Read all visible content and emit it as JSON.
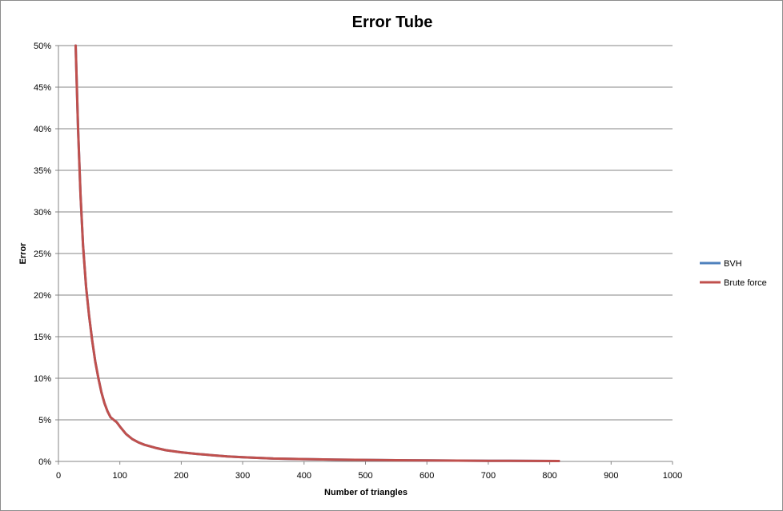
{
  "chart_data": {
    "type": "line",
    "title": "Error Tube",
    "xlabel": "Number of triangles",
    "ylabel": "Error",
    "xlim": [
      0,
      1000
    ],
    "ylim": [
      0,
      50
    ],
    "x_ticks": [
      "0",
      "100",
      "200",
      "300",
      "400",
      "500",
      "600",
      "700",
      "800",
      "900",
      "1000"
    ],
    "y_ticks": [
      "0%",
      "5%",
      "10%",
      "15%",
      "20%",
      "25%",
      "30%",
      "35%",
      "40%",
      "45%",
      "50%"
    ],
    "grid": "horizontal",
    "legend_position": "right",
    "series": [
      {
        "name": "BVH",
        "color": "#4f81bd",
        "points": [
          [
            28,
            50
          ],
          [
            32,
            40
          ],
          [
            36,
            32
          ],
          [
            40,
            26
          ],
          [
            45,
            21
          ],
          [
            50,
            17.5
          ],
          [
            55,
            14.5
          ],
          [
            60,
            12
          ],
          [
            65,
            10
          ],
          [
            70,
            8.3
          ],
          [
            75,
            7
          ],
          [
            80,
            6
          ],
          [
            85,
            5.3
          ],
          [
            90,
            5
          ],
          [
            95,
            4.7
          ],
          [
            100,
            4.2
          ],
          [
            110,
            3.3
          ],
          [
            120,
            2.7
          ],
          [
            130,
            2.3
          ],
          [
            140,
            2
          ],
          [
            150,
            1.8
          ],
          [
            160,
            1.6
          ],
          [
            175,
            1.35
          ],
          [
            200,
            1.1
          ],
          [
            225,
            0.9
          ],
          [
            250,
            0.75
          ],
          [
            275,
            0.6
          ],
          [
            300,
            0.5
          ],
          [
            350,
            0.35
          ],
          [
            400,
            0.28
          ],
          [
            450,
            0.22
          ],
          [
            500,
            0.18
          ],
          [
            550,
            0.14
          ],
          [
            600,
            0.12
          ],
          [
            700,
            0.08
          ],
          [
            815,
            0.05
          ]
        ]
      },
      {
        "name": "Brute force",
        "color": "#c0504d",
        "points": [
          [
            28,
            50
          ],
          [
            32,
            40
          ],
          [
            36,
            32
          ],
          [
            40,
            26
          ],
          [
            45,
            21
          ],
          [
            50,
            17.5
          ],
          [
            55,
            14.5
          ],
          [
            60,
            12
          ],
          [
            65,
            10
          ],
          [
            70,
            8.3
          ],
          [
            75,
            7
          ],
          [
            80,
            6
          ],
          [
            85,
            5.3
          ],
          [
            90,
            5
          ],
          [
            95,
            4.7
          ],
          [
            100,
            4.2
          ],
          [
            110,
            3.3
          ],
          [
            120,
            2.7
          ],
          [
            130,
            2.3
          ],
          [
            140,
            2
          ],
          [
            150,
            1.8
          ],
          [
            160,
            1.6
          ],
          [
            175,
            1.35
          ],
          [
            200,
            1.1
          ],
          [
            225,
            0.9
          ],
          [
            250,
            0.75
          ],
          [
            275,
            0.6
          ],
          [
            300,
            0.5
          ],
          [
            350,
            0.35
          ],
          [
            400,
            0.28
          ],
          [
            450,
            0.22
          ],
          [
            500,
            0.18
          ],
          [
            550,
            0.14
          ],
          [
            600,
            0.12
          ],
          [
            700,
            0.08
          ],
          [
            815,
            0.05
          ]
        ]
      }
    ]
  }
}
